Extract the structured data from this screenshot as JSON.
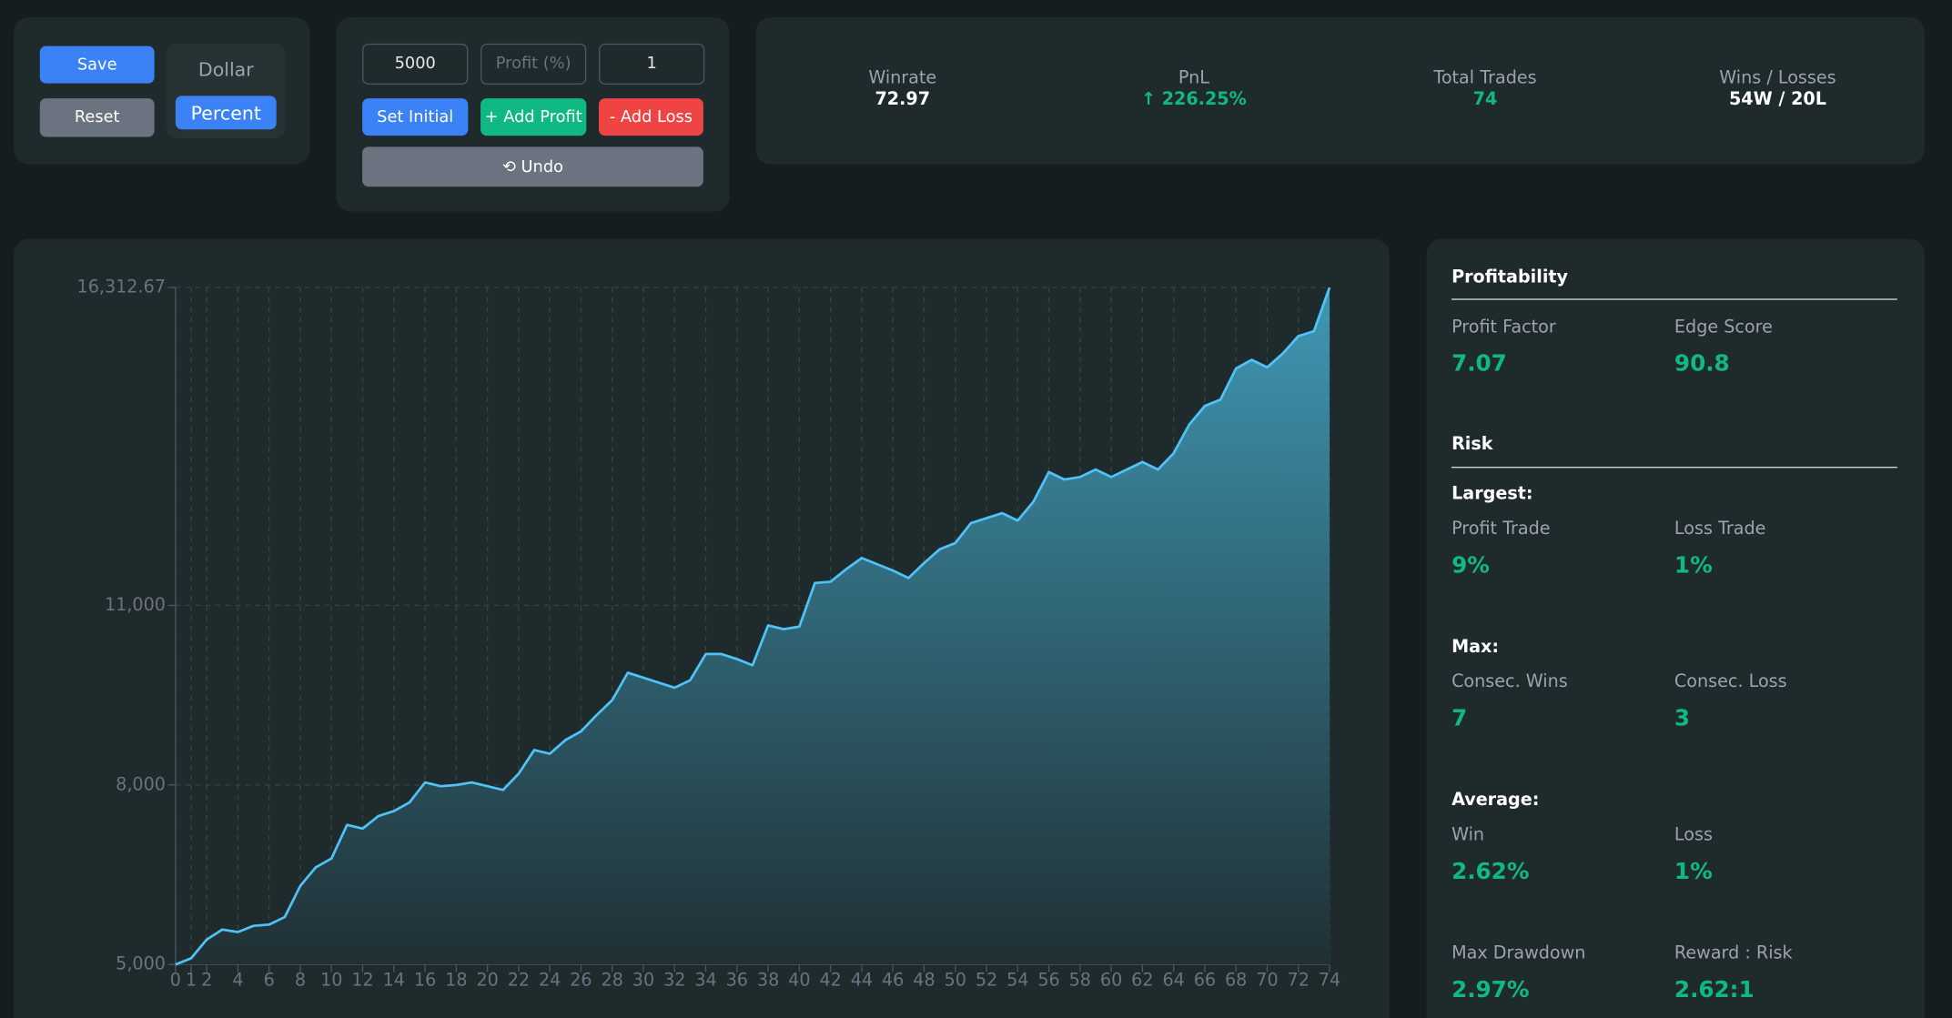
{
  "controls": {
    "save": "Save",
    "reset": "Reset",
    "dollar": "Dollar",
    "percent": "Percent",
    "initial": "5000",
    "profit_placeholder": "Profit (%)",
    "quantity": "1",
    "set_initial": "Set Initial",
    "add_profit": "+ Add Profit",
    "add_loss": "- Add Loss",
    "undo": "⟲ Undo"
  },
  "stats": [
    {
      "label": "Winrate",
      "value": "72.97"
    },
    {
      "label": "PnL",
      "value": "↑ 226.25%"
    },
    {
      "label": "Total Trades",
      "value": "74"
    },
    {
      "label": "Wins / Losses",
      "value": "54W / 20L"
    }
  ],
  "chart_data": {
    "type": "area",
    "color": "#4fc3f7",
    "x": [
      0,
      1,
      2,
      3,
      4,
      5,
      6,
      7,
      8,
      9,
      10,
      11,
      12,
      13,
      14,
      15,
      16,
      17,
      18,
      19,
      20,
      21,
      22,
      23,
      24,
      25,
      26,
      27,
      28,
      29,
      30,
      31,
      32,
      33,
      34,
      35,
      36,
      37,
      38,
      39,
      40,
      41,
      42,
      43,
      44,
      45,
      46,
      47,
      48,
      49,
      50,
      51,
      52,
      53,
      54,
      55,
      56,
      57,
      58,
      59,
      60,
      61,
      62,
      63,
      64,
      65,
      66,
      67,
      68,
      69,
      70,
      71,
      72,
      73,
      74
    ],
    "values": [
      5000,
      5104,
      5417,
      5583,
      5542,
      5646,
      5667,
      5792,
      6313,
      6625,
      6771,
      7333,
      7271,
      7479,
      7563,
      7708,
      8042,
      7979,
      8000,
      8042,
      7979,
      7917,
      8188,
      8583,
      8521,
      8750,
      8896,
      9167,
      9417,
      9875,
      9792,
      9708,
      9625,
      9750,
      10188,
      10188,
      10104,
      10000,
      10667,
      10604,
      10646,
      11375,
      11396,
      11604,
      11792,
      11688,
      11583,
      11458,
      11708,
      11938,
      12042,
      12375,
      12458,
      12542,
      12417,
      12729,
      13229,
      13104,
      13146,
      13271,
      13146,
      13271,
      13396,
      13271,
      13542,
      14021,
      14333,
      14438,
      14958,
      15104,
      14979,
      15208,
      15500,
      15583,
      16312.67
    ],
    "xlim": [
      0,
      74
    ],
    "xticks": [
      0,
      1,
      2,
      4,
      6,
      8,
      10,
      12,
      14,
      16,
      18,
      20,
      22,
      24,
      26,
      28,
      30,
      32,
      34,
      36,
      38,
      40,
      42,
      44,
      46,
      48,
      50,
      52,
      54,
      56,
      58,
      60,
      62,
      64,
      66,
      68,
      70,
      72,
      74
    ],
    "ylim": [
      5000,
      16312.67
    ],
    "yticks": [
      {
        "value": 5000,
        "label": "5,000"
      },
      {
        "value": 8000,
        "label": "8,000"
      },
      {
        "value": 11000,
        "label": "11,000"
      },
      {
        "value": 16312.67,
        "label": "16,312.67"
      }
    ],
    "grid": true
  },
  "sidebar": {
    "profitability": {
      "title": "Profitability",
      "items": [
        {
          "label": "Profit Factor",
          "value": "7.07"
        },
        {
          "label": "Edge Score",
          "value": "90.8"
        }
      ]
    },
    "risk": {
      "title": "Risk",
      "largest": {
        "title": "Largest:",
        "items": [
          {
            "label": "Profit Trade",
            "value": "9%"
          },
          {
            "label": "Loss Trade",
            "value": "1%"
          }
        ]
      },
      "max": {
        "title": "Max:",
        "items": [
          {
            "label": "Consec. Wins",
            "value": "7"
          },
          {
            "label": "Consec. Loss",
            "value": "3"
          }
        ]
      },
      "average": {
        "title": "Average:",
        "items": [
          {
            "label": "Win",
            "value": "2.62%"
          },
          {
            "label": "Loss",
            "value": "1%"
          }
        ]
      },
      "other": [
        {
          "label": "Max Drawdown",
          "value": "2.97%"
        },
        {
          "label": "Reward : Risk",
          "value": "2.62:1"
        }
      ]
    }
  }
}
